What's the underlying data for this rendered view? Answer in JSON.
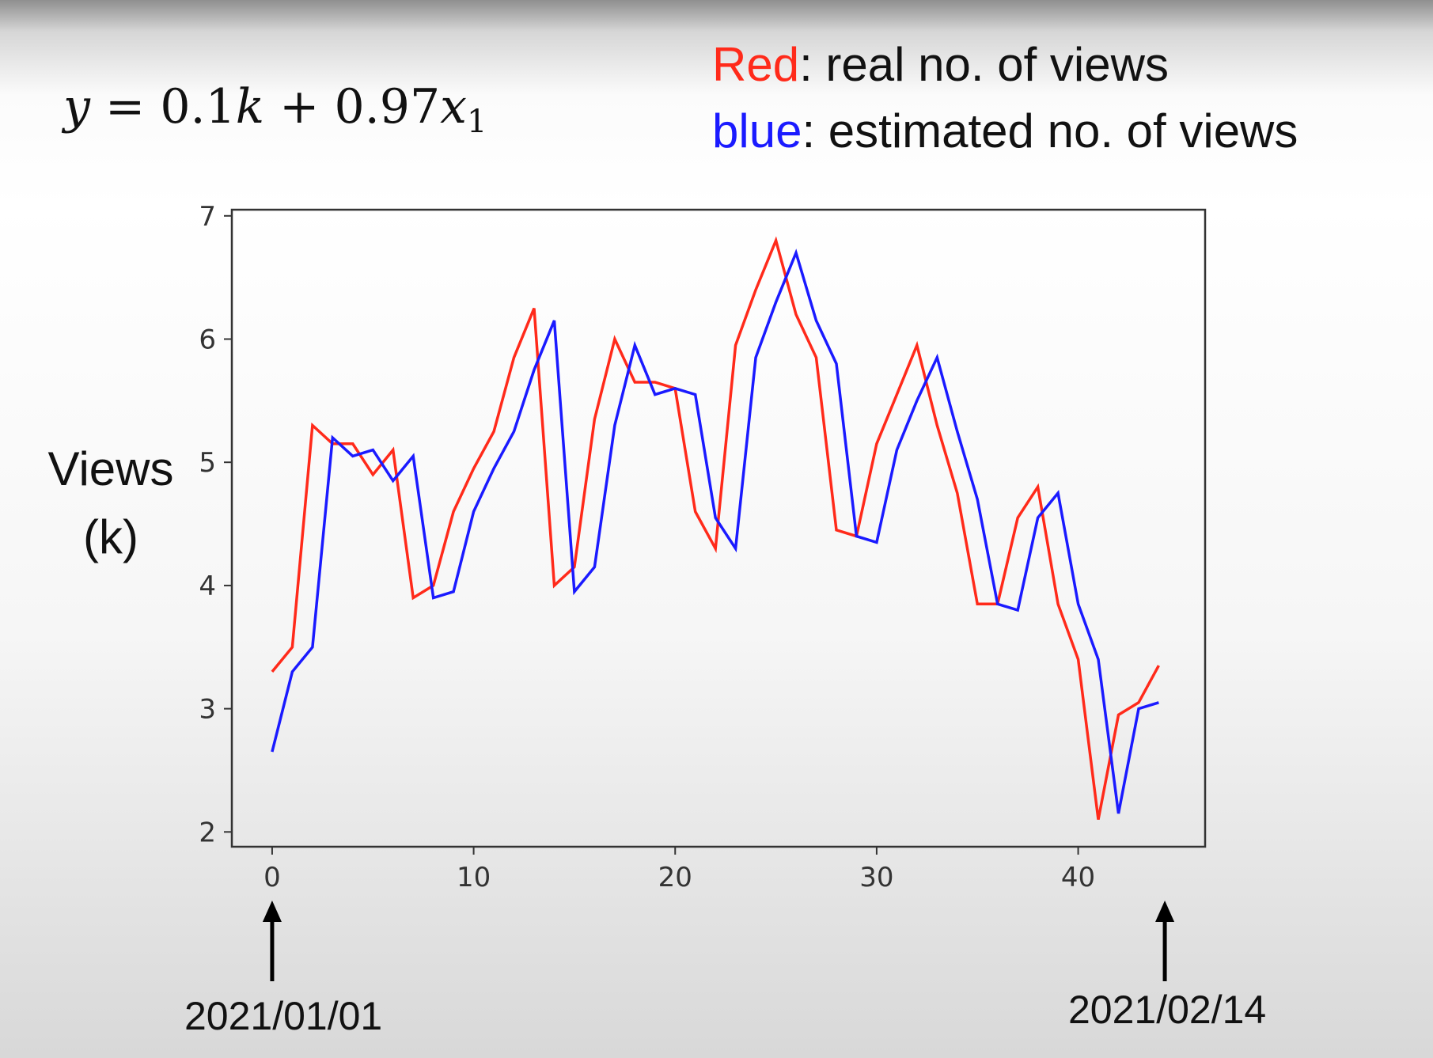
{
  "formula": {
    "lhs": "y",
    "equals": " = ",
    "constant": "0.1",
    "constant_unit": "k",
    "plus": " + ",
    "coefficient": "0.97",
    "variable": "x",
    "variable_subscript": "1"
  },
  "legend": {
    "red_label": "Red",
    "red_desc": ": real no. of views",
    "blue_label": "blue",
    "blue_desc": ":  estimated no. of views"
  },
  "ylabel": {
    "line1": "Views",
    "line2": "(k)"
  },
  "dates": {
    "start": "2021/01/01",
    "end": "2021/02/14"
  },
  "colors": {
    "real": "#ff2a1a",
    "estimated": "#1a1aff",
    "axis": "#333333"
  },
  "chart_data": {
    "type": "line",
    "xlim": [
      -2,
      46.3
    ],
    "ylim": [
      1.88,
      7.05
    ],
    "xticks": [
      0,
      10,
      20,
      30,
      40
    ],
    "yticks": [
      2,
      3,
      4,
      5,
      6,
      7
    ],
    "grid": false,
    "series": [
      {
        "color": "#ff2a1a",
        "x": [
          0,
          1,
          2,
          3,
          4,
          5,
          6,
          7,
          8,
          9,
          10,
          11,
          12,
          13,
          14,
          15,
          16,
          17,
          18,
          19,
          20,
          21,
          22,
          23,
          24,
          25,
          26,
          27,
          28,
          29,
          30,
          31,
          32,
          33,
          34,
          35,
          36,
          37,
          38,
          39,
          40,
          41,
          42,
          43,
          44
        ],
        "y": [
          3.3,
          3.5,
          5.3,
          5.15,
          5.15,
          4.9,
          5.1,
          3.9,
          4.0,
          4.6,
          4.95,
          5.25,
          5.85,
          6.25,
          4.0,
          4.15,
          5.35,
          6.0,
          5.65,
          5.65,
          5.6,
          4.6,
          4.3,
          5.95,
          6.4,
          6.8,
          6.2,
          5.85,
          4.45,
          4.4,
          5.15,
          5.55,
          5.95,
          5.3,
          4.75,
          3.85,
          3.85,
          4.55,
          4.8,
          3.85,
          3.4,
          2.1,
          2.95,
          3.05,
          3.35
        ]
      },
      {
        "color": "#1a1aff",
        "x": [
          0,
          1,
          2,
          3,
          4,
          5,
          6,
          7,
          8,
          9,
          10,
          11,
          12,
          13,
          14,
          15,
          16,
          17,
          18,
          19,
          20,
          21,
          22,
          23,
          24,
          25,
          26,
          27,
          28,
          29,
          30,
          31,
          32,
          33,
          34,
          35,
          36,
          37,
          38,
          39,
          40,
          41,
          42,
          43,
          44
        ],
        "y": [
          2.65,
          3.3,
          3.5,
          5.2,
          5.05,
          5.1,
          4.85,
          5.05,
          3.9,
          3.95,
          4.6,
          4.95,
          5.25,
          5.75,
          6.15,
          3.95,
          4.15,
          5.3,
          5.95,
          5.55,
          5.6,
          5.55,
          4.55,
          4.3,
          5.85,
          6.3,
          6.7,
          6.15,
          5.8,
          4.4,
          4.35,
          5.1,
          5.5,
          5.85,
          5.25,
          4.7,
          3.85,
          3.8,
          4.55,
          4.75,
          3.85,
          3.4,
          2.15,
          3.0,
          3.05
        ]
      }
    ]
  }
}
